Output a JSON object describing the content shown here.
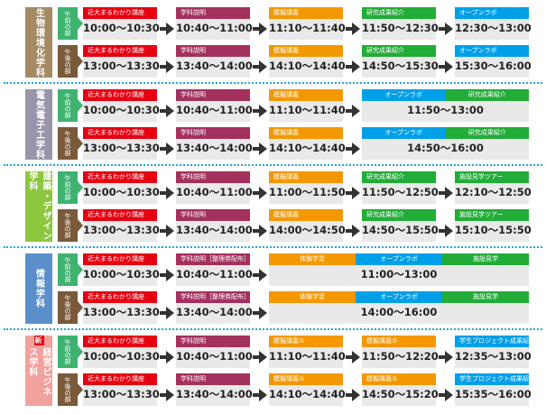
{
  "departments": [
    {
      "name": "生物環境化学科",
      "color": "#a58a64",
      "sessions": [
        {
          "label": "午前の部",
          "color": "#3eb370",
          "blocks": [
            {
              "headers": [
                {
                  "text": "近大まるわかり講座",
                  "color": "#e60012"
                }
              ],
              "time": "10:00～10:30"
            },
            {
              "headers": [
                {
                  "text": "学科説明",
                  "color": "#a3315d"
                }
              ],
              "time": "10:40～11:00"
            },
            {
              "headers": [
                {
                  "text": "模擬講義",
                  "color": "#f39800"
                }
              ],
              "time": "11:10～11:40"
            },
            {
              "headers": [
                {
                  "text": "研究成果紹介",
                  "color": "#22ac38"
                }
              ],
              "time": "11:50～12:30"
            },
            {
              "headers": [
                {
                  "text": "オープンラボ",
                  "color": "#00a0e9"
                }
              ],
              "time": "12:30～13:00"
            }
          ]
        },
        {
          "label": "午後の部",
          "color": "#7a5a3a",
          "blocks": [
            {
              "headers": [
                {
                  "text": "近大まるわかり講座",
                  "color": "#e60012"
                }
              ],
              "time": "13:00～13:30"
            },
            {
              "headers": [
                {
                  "text": "学科説明",
                  "color": "#a3315d"
                }
              ],
              "time": "13:40～14:00"
            },
            {
              "headers": [
                {
                  "text": "模擬講義",
                  "color": "#f39800"
                }
              ],
              "time": "14:10～14:40"
            },
            {
              "headers": [
                {
                  "text": "研究成果紹介",
                  "color": "#22ac38"
                }
              ],
              "time": "14:50～15:30"
            },
            {
              "headers": [
                {
                  "text": "オープンラボ",
                  "color": "#00a0e9"
                }
              ],
              "time": "15:30～16:00"
            }
          ]
        }
      ]
    },
    {
      "name": "電気電子工学科",
      "color": "#9a94ab",
      "sessions": [
        {
          "label": "午前の部",
          "color": "#3eb370",
          "blocks": [
            {
              "headers": [
                {
                  "text": "近大まるわかり講座",
                  "color": "#e60012"
                }
              ],
              "time": "10:00～10:30"
            },
            {
              "headers": [
                {
                  "text": "学科説明",
                  "color": "#a3315d"
                }
              ],
              "time": "10:40～11:00"
            },
            {
              "headers": [
                {
                  "text": "模擬講義",
                  "color": "#f39800"
                }
              ],
              "time": "11:10～11:40"
            },
            {
              "headers": [
                {
                  "text": "オープンラボ",
                  "color": "#00a0e9"
                },
                {
                  "text": "研究成果紹介",
                  "color": "#22ac38"
                }
              ],
              "time": "11:50～13:00"
            }
          ]
        },
        {
          "label": "午後の部",
          "color": "#7a5a3a",
          "blocks": [
            {
              "headers": [
                {
                  "text": "近大まるわかり講座",
                  "color": "#e60012"
                }
              ],
              "time": "13:00～13:30"
            },
            {
              "headers": [
                {
                  "text": "学科説明",
                  "color": "#a3315d"
                }
              ],
              "time": "13:40～14:00"
            },
            {
              "headers": [
                {
                  "text": "模擬講義",
                  "color": "#f39800"
                }
              ],
              "time": "14:10～14:40"
            },
            {
              "headers": [
                {
                  "text": "オープンラボ",
                  "color": "#00a0e9"
                },
                {
                  "text": "研究成果紹介",
                  "color": "#22ac38"
                }
              ],
              "time": "14:50～16:00"
            }
          ]
        }
      ]
    },
    {
      "name": "建築・デザイン学科",
      "color": "#8dc63f",
      "sessions": [
        {
          "label": "午前の部",
          "color": "#3eb370",
          "blocks": [
            {
              "headers": [
                {
                  "text": "近大まるわかり講座",
                  "color": "#e60012"
                }
              ],
              "time": "10:00～10:30"
            },
            {
              "headers": [
                {
                  "text": "学科説明",
                  "color": "#a3315d"
                }
              ],
              "time": "10:40～11:00"
            },
            {
              "headers": [
                {
                  "text": "模擬講義",
                  "color": "#f39800"
                }
              ],
              "time": "11:00～11:50"
            },
            {
              "headers": [
                {
                  "text": "研究成果紹介",
                  "color": "#22ac38"
                }
              ],
              "time": "11:50～12:50"
            },
            {
              "headers": [
                {
                  "text": "施設見学ツアー",
                  "color": "#22ac38"
                }
              ],
              "time": "12:10～12:50"
            }
          ]
        },
        {
          "label": "午後の部",
          "color": "#7a5a3a",
          "blocks": [
            {
              "headers": [
                {
                  "text": "近大まるわかり講座",
                  "color": "#e60012"
                }
              ],
              "time": "13:00～13:30"
            },
            {
              "headers": [
                {
                  "text": "学科説明",
                  "color": "#a3315d"
                }
              ],
              "time": "13:40～14:00"
            },
            {
              "headers": [
                {
                  "text": "模擬講義",
                  "color": "#f39800"
                }
              ],
              "time": "14:00～14:50"
            },
            {
              "headers": [
                {
                  "text": "研究成果紹介",
                  "color": "#22ac38"
                }
              ],
              "time": "14:50～15:50"
            },
            {
              "headers": [
                {
                  "text": "施設見学ツアー",
                  "color": "#22ac38"
                }
              ],
              "time": "15:10～15:50"
            }
          ]
        }
      ]
    },
    {
      "name": "情報学科",
      "color": "#5a8fcb",
      "sessions": [
        {
          "label": "午前の部",
          "color": "#3eb370",
          "blocks": [
            {
              "headers": [
                {
                  "text": "近大まるわかり講座",
                  "color": "#e60012"
                }
              ],
              "time": "10:00～10:30"
            },
            {
              "headers": [
                {
                  "text": "学科説明［整理券配布］",
                  "color": "#a3315d"
                }
              ],
              "time": "10:40～11:00"
            },
            {
              "headers": [
                {
                  "text": "体験学習",
                  "color": "#f39800"
                },
                {
                  "text": "オープンラボ",
                  "color": "#00a0e9"
                },
                {
                  "text": "施設見学",
                  "color": "#22ac38"
                }
              ],
              "time": "11:00～13:00"
            }
          ]
        },
        {
          "label": "午後の部",
          "color": "#7a5a3a",
          "blocks": [
            {
              "headers": [
                {
                  "text": "近大まるわかり講座",
                  "color": "#e60012"
                }
              ],
              "time": "13:00～13:30"
            },
            {
              "headers": [
                {
                  "text": "学科説明［整理券配布］",
                  "color": "#a3315d"
                }
              ],
              "time": "13:40～14:00"
            },
            {
              "headers": [
                {
                  "text": "体験学習",
                  "color": "#f39800"
                },
                {
                  "text": "オープンラボ",
                  "color": "#00a0e9"
                },
                {
                  "text": "施設見学",
                  "color": "#22ac38"
                }
              ],
              "time": "14:00～16:00"
            }
          ]
        }
      ]
    },
    {
      "name": "経営ビジネス学科",
      "badge": "新",
      "color": "#f2a19c",
      "sessions": [
        {
          "label": "午前の部",
          "color": "#3eb370",
          "blocks": [
            {
              "headers": [
                {
                  "text": "近大まるわかり講座",
                  "color": "#e60012"
                }
              ],
              "time": "10:00～10:30"
            },
            {
              "headers": [
                {
                  "text": "学科説明",
                  "color": "#a3315d"
                }
              ],
              "time": "10:40～11:00"
            },
            {
              "headers": [
                {
                  "text": "模擬講義①",
                  "color": "#f39800"
                }
              ],
              "time": "11:10～11:40"
            },
            {
              "headers": [
                {
                  "text": "模擬講義②",
                  "color": "#f39800"
                }
              ],
              "time": "11:50～12:20"
            },
            {
              "headers": [
                {
                  "text": "学生プロジェクト成果紹介",
                  "color": "#00a0e9"
                }
              ],
              "time": "12:35～13:00"
            }
          ]
        },
        {
          "label": "午後の部",
          "color": "#7a5a3a",
          "blocks": [
            {
              "headers": [
                {
                  "text": "近大まるわかり講座",
                  "color": "#e60012"
                }
              ],
              "time": "13:00～13:30"
            },
            {
              "headers": [
                {
                  "text": "学科説明",
                  "color": "#a3315d"
                }
              ],
              "time": "13:40～14:00"
            },
            {
              "headers": [
                {
                  "text": "模擬講義①",
                  "color": "#f39800"
                }
              ],
              "time": "14:10～14:40"
            },
            {
              "headers": [
                {
                  "text": "模擬講義②",
                  "color": "#f39800"
                }
              ],
              "time": "14:50～15:20"
            },
            {
              "headers": [
                {
                  "text": "学生プロジェクト成果紹介",
                  "color": "#00a0e9"
                }
              ],
              "time": "15:35～16:00"
            }
          ]
        }
      ]
    }
  ]
}
